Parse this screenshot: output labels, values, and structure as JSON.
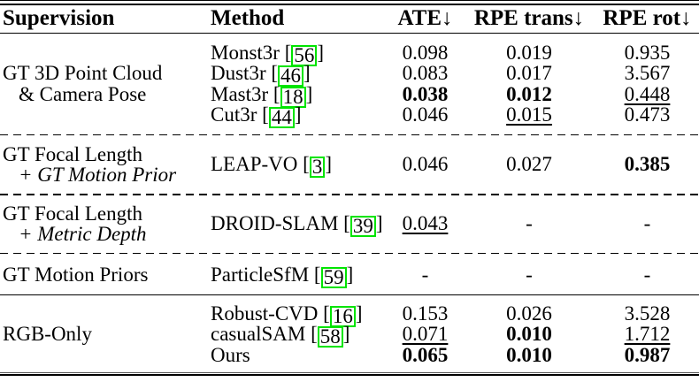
{
  "header": {
    "supervision": "Supervision",
    "method": "Method",
    "ate": "ATE↓",
    "rpe_trans": "RPE trans↓",
    "rpe_rot": "RPE rot↓"
  },
  "citation_box_color": "#00e400",
  "text_color": "#000000",
  "chart_data": {
    "type": "table",
    "columns": [
      "Supervision",
      "Method",
      "ATE↓",
      "RPE trans↓",
      "RPE rot↓"
    ],
    "rows": [
      [
        "GT 3D Point Cloud & Camera Pose",
        "Monst3r [56]",
        "0.098",
        "0.019",
        "0.935"
      ],
      [
        "GT 3D Point Cloud & Camera Pose",
        "Dust3r [46]",
        "0.083",
        "0.017",
        "3.567"
      ],
      [
        "GT 3D Point Cloud & Camera Pose",
        "Mast3r [18]",
        "0.038",
        "0.012",
        "0.448"
      ],
      [
        "GT 3D Point Cloud & Camera Pose",
        "Cut3r [44]",
        "0.046",
        "0.015",
        "0.473"
      ],
      [
        "GT Focal Length + GT Motion Prior",
        "LEAP-VO [3]",
        "0.046",
        "0.027",
        "0.385"
      ],
      [
        "GT Focal Length + Metric Depth",
        "DROID-SLAM [39]",
        "0.043",
        "-",
        "-"
      ],
      [
        "GT Motion Priors",
        "ParticleSfM [59]",
        "-",
        "-",
        "-"
      ],
      [
        "RGB-Only",
        "Robust-CVD [16]",
        "0.153",
        "0.026",
        "3.528"
      ],
      [
        "RGB-Only",
        "casualSAM [58]",
        "0.071",
        "0.010",
        "1.712"
      ],
      [
        "RGB-Only",
        "Ours",
        "0.065",
        "0.010",
        "0.987"
      ]
    ]
  },
  "sections": [
    {
      "divider_after": "dashed",
      "supervision": [
        {
          "text": "GT 3D Point Cloud",
          "italic": false,
          "indent": false
        },
        {
          "text": "& Camera Pose",
          "italic": false,
          "indent": true
        }
      ],
      "rows": [
        {
          "method": "Monst3r",
          "cite": "56",
          "metrics": [
            {
              "value": "0.098",
              "style": "normal"
            },
            {
              "value": "0.019",
              "style": "normal"
            },
            {
              "value": "0.935",
              "style": "normal"
            }
          ]
        },
        {
          "method": "Dust3r",
          "cite": "46",
          "metrics": [
            {
              "value": "0.083",
              "style": "normal"
            },
            {
              "value": "0.017",
              "style": "normal"
            },
            {
              "value": "3.567",
              "style": "normal"
            }
          ]
        },
        {
          "method": "Mast3r",
          "cite": "18",
          "metrics": [
            {
              "value": "0.038",
              "style": "bold"
            },
            {
              "value": "0.012",
              "style": "bold"
            },
            {
              "value": "0.448",
              "style": "underline"
            }
          ]
        },
        {
          "method": "Cut3r",
          "cite": "44",
          "metrics": [
            {
              "value": "0.046",
              "style": "normal"
            },
            {
              "value": "0.015",
              "style": "underline"
            },
            {
              "value": "0.473",
              "style": "normal"
            }
          ]
        }
      ]
    },
    {
      "divider_after": "dashed",
      "supervision": [
        {
          "text": "GT Focal Length",
          "italic": false,
          "indent": false
        },
        {
          "text": "+ GT Motion Prior",
          "italic": true,
          "indent": true
        }
      ],
      "rows": [
        {
          "method": "LEAP-VO",
          "cite": "3",
          "metrics": [
            {
              "value": "0.046",
              "style": "normal"
            },
            {
              "value": "0.027",
              "style": "normal"
            },
            {
              "value": "0.385",
              "style": "bold"
            }
          ]
        }
      ]
    },
    {
      "divider_after": "dashed",
      "supervision": [
        {
          "text": "GT Focal Length",
          "italic": false,
          "indent": false
        },
        {
          "text": "+ Metric Depth",
          "italic": true,
          "indent": true
        }
      ],
      "rows": [
        {
          "method": "DROID-SLAM",
          "cite": "39",
          "metrics": [
            {
              "value": "0.043",
              "style": "underline"
            },
            {
              "value": "-",
              "style": "normal"
            },
            {
              "value": "-",
              "style": "normal"
            }
          ]
        }
      ]
    },
    {
      "divider_after": "solid",
      "supervision": [
        {
          "text": "GT Motion Priors",
          "italic": false,
          "indent": false
        }
      ],
      "rows": [
        {
          "method": "ParticleSfM",
          "cite": "59",
          "metrics": [
            {
              "value": "-",
              "style": "normal"
            },
            {
              "value": "-",
              "style": "normal"
            },
            {
              "value": "-",
              "style": "normal"
            }
          ]
        }
      ]
    },
    {
      "divider_after": "none",
      "supervision": [
        {
          "text": "RGB-Only",
          "italic": false,
          "indent": false
        }
      ],
      "rows": [
        {
          "method": "Robust-CVD",
          "cite": "16",
          "metrics": [
            {
              "value": "0.153",
              "style": "normal"
            },
            {
              "value": "0.026",
              "style": "normal"
            },
            {
              "value": "3.528",
              "style": "normal"
            }
          ]
        },
        {
          "method": "casualSAM",
          "cite": "58",
          "metrics": [
            {
              "value": "0.071",
              "style": "underline"
            },
            {
              "value": "0.010",
              "style": "bold"
            },
            {
              "value": "1.712",
              "style": "underline"
            }
          ]
        },
        {
          "method": "Ours",
          "cite": null,
          "metrics": [
            {
              "value": "0.065",
              "style": "bold"
            },
            {
              "value": "0.010",
              "style": "bold"
            },
            {
              "value": "0.987",
              "style": "bold"
            }
          ]
        }
      ]
    }
  ]
}
